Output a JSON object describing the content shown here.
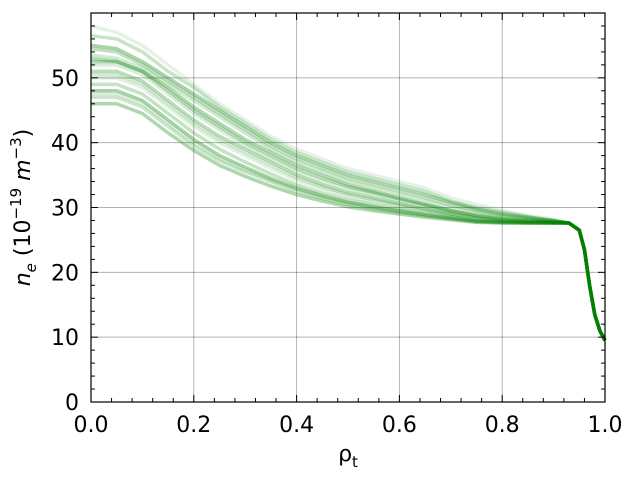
{
  "chart_data": {
    "type": "line",
    "title": "",
    "xlabel": "ρ_t",
    "ylabel": "n_e (10^-19 m^-3)",
    "xlim": [
      0.0,
      1.0
    ],
    "ylim": [
      0,
      60
    ],
    "xticks": [
      0.0,
      0.2,
      0.4,
      0.6,
      0.8,
      1.0
    ],
    "xtick_labels": [
      "0.0",
      "0.2",
      "0.4",
      "0.6",
      "0.8",
      "1.0"
    ],
    "yticks": [
      0,
      10,
      20,
      30,
      40,
      50
    ],
    "ytick_labels": [
      "0",
      "10",
      "20",
      "30",
      "40",
      "50"
    ],
    "grid": true,
    "minor_ticks": true,
    "line_color": "#008000",
    "line_alpha_range": [
      0.1,
      0.35
    ],
    "x": [
      0.0,
      0.05,
      0.1,
      0.15,
      0.2,
      0.25,
      0.3,
      0.35,
      0.4,
      0.45,
      0.5,
      0.55,
      0.6,
      0.65,
      0.7,
      0.75,
      0.8,
      0.85,
      0.9,
      0.93,
      0.95,
      0.96,
      0.97,
      0.98,
      0.99,
      1.0
    ],
    "series": [
      {
        "values": [
          58.0,
          57.0,
          55.0,
          52.0,
          49.0,
          46.0,
          43.5,
          41.0,
          39.0,
          37.5,
          36.0,
          35.0,
          34.0,
          33.0,
          31.5,
          30.5,
          29.5,
          28.8,
          28.2,
          27.6,
          26.5,
          23.5,
          18.0,
          13.5,
          11.0,
          9.5
        ]
      },
      {
        "values": [
          56.5,
          56.0,
          54.0,
          51.0,
          48.5,
          45.5,
          43.0,
          40.5,
          38.5,
          37.0,
          35.5,
          34.5,
          33.5,
          32.5,
          31.0,
          30.0,
          29.3,
          28.6,
          28.0,
          27.6,
          26.5,
          23.5,
          18.0,
          13.5,
          11.0,
          9.5
        ]
      },
      {
        "values": [
          55.0,
          54.5,
          52.5,
          50.0,
          47.5,
          45.0,
          42.5,
          40.0,
          38.0,
          36.5,
          35.0,
          34.0,
          33.0,
          32.0,
          30.8,
          29.8,
          29.0,
          28.5,
          28.0,
          27.6,
          26.5,
          23.5,
          18.0,
          13.5,
          11.0,
          9.5
        ]
      },
      {
        "values": [
          53.5,
          53.0,
          51.5,
          49.0,
          46.5,
          44.0,
          41.5,
          39.0,
          37.0,
          35.5,
          34.0,
          33.0,
          32.0,
          31.0,
          30.0,
          29.2,
          28.6,
          28.2,
          27.9,
          27.6,
          26.5,
          23.5,
          18.0,
          13.5,
          11.0,
          9.5
        ]
      },
      {
        "values": [
          52.5,
          52.5,
          51.0,
          48.5,
          45.5,
          43.0,
          40.5,
          38.5,
          36.5,
          35.0,
          33.5,
          32.5,
          31.5,
          30.5,
          29.5,
          28.8,
          28.3,
          28.0,
          27.8,
          27.6,
          26.5,
          23.5,
          18.0,
          13.5,
          11.0,
          9.5
        ]
      },
      {
        "values": [
          52.0,
          52.0,
          50.5,
          47.5,
          44.5,
          42.0,
          39.5,
          37.5,
          35.5,
          34.0,
          32.8,
          32.0,
          31.0,
          30.2,
          29.3,
          28.6,
          28.1,
          27.9,
          27.7,
          27.6,
          26.5,
          23.5,
          18.0,
          13.5,
          11.0,
          9.5
        ]
      },
      {
        "values": [
          51.0,
          51.0,
          49.5,
          46.5,
          43.5,
          41.0,
          39.0,
          37.0,
          35.0,
          33.5,
          32.3,
          31.5,
          30.6,
          29.8,
          29.0,
          28.4,
          28.0,
          27.8,
          27.7,
          27.6,
          26.5,
          23.5,
          18.0,
          13.5,
          11.0,
          9.5
        ]
      },
      {
        "values": [
          50.0,
          50.0,
          48.5,
          45.5,
          42.5,
          40.0,
          38.0,
          36.0,
          34.2,
          32.8,
          31.7,
          31.0,
          30.2,
          29.5,
          28.8,
          28.2,
          27.9,
          27.7,
          27.6,
          27.6,
          26.5,
          23.5,
          18.0,
          13.5,
          11.0,
          9.5
        ]
      },
      {
        "values": [
          49.0,
          49.0,
          47.5,
          44.5,
          41.5,
          39.0,
          37.0,
          35.2,
          33.5,
          32.2,
          31.2,
          30.5,
          29.8,
          29.2,
          28.6,
          28.0,
          27.8,
          27.7,
          27.6,
          27.6,
          26.5,
          23.5,
          18.0,
          13.5,
          11.0,
          9.5
        ]
      },
      {
        "values": [
          48.0,
          48.0,
          46.5,
          43.5,
          40.5,
          38.0,
          36.2,
          34.5,
          33.0,
          31.8,
          30.8,
          30.1,
          29.5,
          28.9,
          28.4,
          27.9,
          27.7,
          27.6,
          27.6,
          27.6,
          26.5,
          23.5,
          18.0,
          13.5,
          11.0,
          9.5
        ]
      },
      {
        "values": [
          47.0,
          47.0,
          45.5,
          42.5,
          39.5,
          37.2,
          35.5,
          34.0,
          32.5,
          31.4,
          30.5,
          29.8,
          29.2,
          28.7,
          28.2,
          27.8,
          27.6,
          27.6,
          27.6,
          27.6,
          26.5,
          23.5,
          18.0,
          13.5,
          11.0,
          9.5
        ]
      },
      {
        "values": [
          46.0,
          46.0,
          44.5,
          41.5,
          38.8,
          36.5,
          34.8,
          33.3,
          32.0,
          31.0,
          30.1,
          29.5,
          29.0,
          28.5,
          28.1,
          27.7,
          27.6,
          27.6,
          27.6,
          27.6,
          26.5,
          23.5,
          18.0,
          13.5,
          11.0,
          9.5
        ]
      },
      {
        "values": [
          50.5,
          50.5,
          49.0,
          46.0,
          43.0,
          40.5,
          38.5,
          36.5,
          34.6,
          33.2,
          32.0,
          31.2,
          30.4,
          29.7,
          29.0,
          28.3,
          27.9,
          27.7,
          27.6,
          27.6,
          26.5,
          23.5,
          18.0,
          13.5,
          11.0,
          9.5
        ]
      },
      {
        "values": [
          53.0,
          52.5,
          51.0,
          48.0,
          45.0,
          42.5,
          40.0,
          38.0,
          36.0,
          34.5,
          33.2,
          32.3,
          31.3,
          30.4,
          29.5,
          28.7,
          28.2,
          27.9,
          27.7,
          27.6,
          26.5,
          23.5,
          18.0,
          13.5,
          11.0,
          9.5
        ]
      },
      {
        "values": [
          47.5,
          47.5,
          46.0,
          43.0,
          40.0,
          37.5,
          35.8,
          34.2,
          32.8,
          31.6,
          30.7,
          30.0,
          29.4,
          28.8,
          28.3,
          27.8,
          27.7,
          27.6,
          27.6,
          27.6,
          26.5,
          23.5,
          18.0,
          13.5,
          11.0,
          9.5
        ]
      },
      {
        "values": [
          54.5,
          54.0,
          52.0,
          49.5,
          47.0,
          44.5,
          42.0,
          39.5,
          37.5,
          36.0,
          34.5,
          33.5,
          32.5,
          31.5,
          30.4,
          29.5,
          28.8,
          28.3,
          27.9,
          27.6,
          26.5,
          23.5,
          18.0,
          13.5,
          11.0,
          9.5
        ]
      }
    ]
  }
}
